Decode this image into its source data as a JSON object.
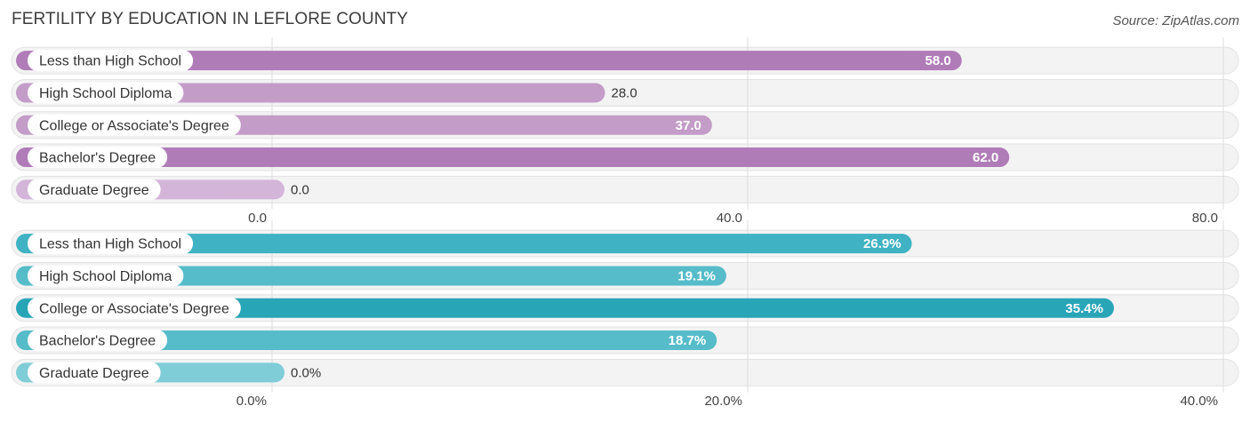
{
  "header": {
    "title": "FERTILITY BY EDUCATION IN LEFLORE COUNTY",
    "source": "Source: ZipAtlas.com"
  },
  "chart_data": [
    {
      "type": "bar",
      "orientation": "horizontal",
      "categories": [
        "Less than High School",
        "High School Diploma",
        "College or Associate's Degree",
        "Bachelor's Degree",
        "Graduate Degree"
      ],
      "values": [
        58.0,
        28.0,
        37.0,
        62.0,
        0.0
      ],
      "value_labels": [
        "58.0",
        "28.0",
        "37.0",
        "62.0",
        "0.0"
      ],
      "xlim": [
        0,
        80
      ],
      "ticks": [
        0,
        40,
        80
      ],
      "tick_labels": [
        "0.0",
        "40.0",
        "80.0"
      ],
      "bar_colors": [
        "#b07cb8",
        "#c39cc8",
        "#c39cc8",
        "#b07cb8",
        "#d4b5da"
      ],
      "grid": true
    },
    {
      "type": "bar",
      "orientation": "horizontal",
      "categories": [
        "Less than High School",
        "High School Diploma",
        "College or Associate's Degree",
        "Bachelor's Degree",
        "Graduate Degree"
      ],
      "values": [
        26.9,
        19.1,
        35.4,
        18.7,
        0.0
      ],
      "value_labels": [
        "26.9%",
        "19.1%",
        "35.4%",
        "18.7%",
        "0.0%"
      ],
      "xlim": [
        0,
        40
      ],
      "ticks": [
        0,
        20,
        40
      ],
      "tick_labels": [
        "0.0%",
        "20.0%",
        "40.0%"
      ],
      "bar_colors": [
        "#3fb2c3",
        "#56bcc9",
        "#29a5b8",
        "#56bcc9",
        "#7fcdd7"
      ],
      "grid": true
    }
  ]
}
